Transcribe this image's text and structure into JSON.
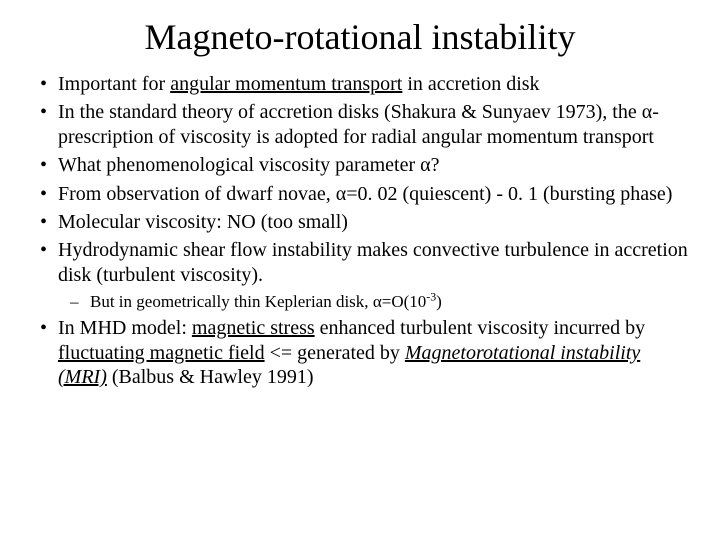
{
  "title": "Magneto-rotational instability",
  "b1_a": "Important for ",
  "b1_ul": "angular momentum transport",
  "b1_b": " in accretion disk",
  "b2_a": "In the standard theory of accretion disks (Shakura & Sunyaev 1973), the ",
  "b2_alpha": "α",
  "b2_b": "-prescription of viscosity is adopted for radial angular momentum transport",
  "b3_a": "What phenomenological viscosity parameter ",
  "b3_alpha": "α",
  "b3_b": "?",
  "b4_a": "From observation of dwarf novae, ",
  "b4_alpha": "α",
  "b4_b": "=0. 02 (quiescent) - 0. 1 (bursting phase)",
  "b5": "Molecular viscosity: NO (too small)",
  "b6": "Hydrodynamic shear flow instability makes convective turbulence in accretion disk (turbulent viscosity).",
  "b6s_a": "But in geometrically thin Keplerian disk, ",
  "b6s_alpha": "α",
  "b6s_b": "=O(10",
  "b6s_sup": "-3",
  "b6s_c": ")",
  "b7_a": "In MHD model: ",
  "b7_ul1": "magnetic stress",
  "b7_b": " enhanced turbulent viscosity incurred by ",
  "b7_ul2": "fluctuating magnetic field",
  "b7_c": " <= generated by ",
  "b7_ital": "Magnetorotational instability (MRI)",
  "b7_d": " (Balbus & Hawley 1991)"
}
